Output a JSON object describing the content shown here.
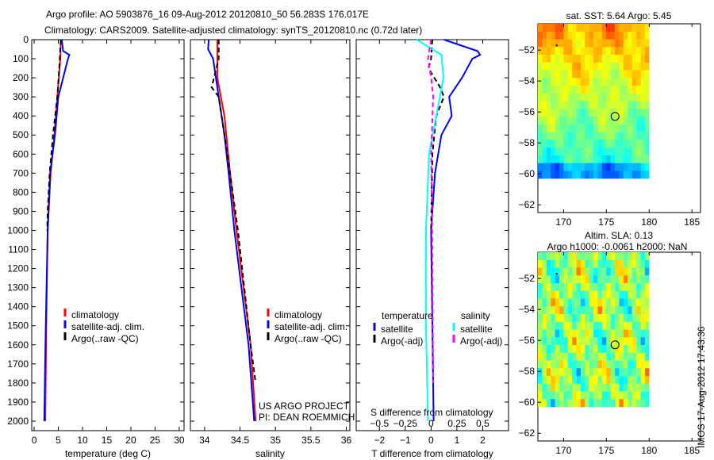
{
  "title_line1": "Argo profile: AO 5903876_16 09-Aug-2012 20120810_50 56.283S 176.017E",
  "title_line2": "Climatology: CARS2009. Satellite-adjusted climatology: synTS_20120810.nc (0.72d later)",
  "side_stamp": "IMOS 17-Aug-2012 17:43:36",
  "colors": {
    "climatology": "#ff0000",
    "satellite": "#0000ff",
    "argo": "#000000",
    "s_satellite": "#00ffff",
    "s_argo": "#ff00ff"
  },
  "chart_data": [
    {
      "type": "line",
      "xlabel": "temperature (deg C)",
      "ylabel": "",
      "xlim": [
        -0.5,
        31
      ],
      "ylim": [
        2050,
        0
      ],
      "xticks": [
        0,
        5,
        10,
        15,
        20,
        25,
        30
      ],
      "yticks": [
        0,
        100,
        200,
        300,
        400,
        500,
        600,
        700,
        800,
        900,
        1000,
        1100,
        1200,
        1300,
        1400,
        1500,
        1600,
        1700,
        1800,
        1900,
        2000
      ],
      "legend": [
        "climatology",
        "satellite-adj. clim.",
        "Argo(..raw -QC)"
      ],
      "legend_position": "lower-center",
      "series": [
        {
          "name": "climatology",
          "depth": [
            0,
            100,
            300,
            500,
            700,
            1000,
            1500,
            2000
          ],
          "values": [
            5.5,
            5.4,
            4.8,
            4.2,
            3.4,
            2.8,
            2.5,
            2.3
          ]
        },
        {
          "name": "satellite-adj. clim.",
          "depth": [
            0,
            60,
            80,
            100,
            200,
            300,
            500,
            700,
            1000,
            1500,
            1800,
            2000
          ],
          "values": [
            5.7,
            6.0,
            7.3,
            7.0,
            6.0,
            5.0,
            4.3,
            3.3,
            2.8,
            2.4,
            2.2,
            2.1
          ]
        },
        {
          "name": "Argo(..raw -QC)",
          "depth": [
            0,
            100,
            300,
            500,
            700,
            900,
            1000
          ],
          "values": [
            5.5,
            5.3,
            4.8,
            3.9,
            3.2,
            2.8,
            2.7
          ]
        }
      ]
    },
    {
      "type": "line",
      "xlabel": "salinity",
      "xlim": [
        33.8,
        36.05
      ],
      "ylim": [
        2050,
        0
      ],
      "xticks": [
        34,
        34.5,
        35,
        35.5,
        36
      ],
      "legend": [
        "climatology",
        "satellite-adj. clim.",
        "Argo(..raw -QC)"
      ],
      "legend_position": "center-right",
      "annotation": [
        "US ARGO PROJECT",
        "PI: DEAN ROEMMICH"
      ],
      "series": [
        {
          "name": "climatology",
          "depth": [
            0,
            200,
            400,
            700,
            1000,
            1300,
            1600,
            2000
          ],
          "values": [
            34.18,
            34.18,
            34.28,
            34.36,
            34.45,
            34.55,
            34.65,
            34.72
          ]
        },
        {
          "name": "satellite-adj. clim.",
          "depth": [
            0,
            50,
            100,
            300,
            500,
            700,
            1000,
            1300,
            1600,
            2000
          ],
          "values": [
            34.06,
            34.05,
            34.12,
            34.2,
            34.28,
            34.34,
            34.42,
            34.52,
            34.62,
            34.7
          ]
        },
        {
          "name": "Argo(..raw -QC)",
          "depth": [
            0,
            100,
            250,
            300,
            500,
            700,
            1000,
            1300,
            1600,
            1800
          ],
          "values": [
            34.2,
            34.2,
            34.1,
            34.2,
            34.28,
            34.36,
            34.47,
            34.56,
            34.65,
            34.72
          ]
        }
      ]
    },
    {
      "type": "line",
      "xlabel": "T difference from climatology",
      "xlabel2": "S difference from climatology",
      "xlim": [
        -2.9,
        3.0
      ],
      "ylim": [
        2050,
        0
      ],
      "xticks": [
        -2,
        -1,
        0,
        1,
        2
      ],
      "xticks2": [
        "-0.5",
        "-0.25",
        "0",
        "0.25",
        "0.5"
      ],
      "legend_headers": [
        "temperature",
        "salinity"
      ],
      "legend": [
        "satellite",
        "Argo(-adj)",
        "satellite",
        "Argo(-adj)"
      ],
      "legend_position": "lower-center",
      "series": [
        {
          "name": "T satellite",
          "depth": [
            0,
            60,
            80,
            100,
            200,
            300,
            400,
            500,
            700,
            1000,
            1500,
            2000
          ],
          "values": [
            0.5,
            1.8,
            1.9,
            1.6,
            1.2,
            0.7,
            0.8,
            0.4,
            0.15,
            0.0,
            0.05,
            0.1
          ]
        },
        {
          "name": "T Argo(-adj)",
          "depth": [
            0,
            100,
            150,
            250,
            300,
            400,
            600,
            1000
          ],
          "values": [
            0.05,
            0.0,
            -0.1,
            0.35,
            0.5,
            0.2,
            0.05,
            0.0
          ]
        },
        {
          "name": "S satellite",
          "depth": [
            0,
            80,
            200,
            400,
            600,
            1000,
            1500,
            2000
          ],
          "values": [
            -0.14,
            0.1,
            0.12,
            0.05,
            -0.02,
            -0.05,
            -0.05,
            -0.03
          ]
        },
        {
          "name": "S Argo(-adj)",
          "depth": [
            0,
            100,
            200,
            300,
            600,
            1000,
            1800
          ],
          "values": [
            0.0,
            -0.03,
            0.0,
            0.02,
            0.0,
            0.01,
            0.02
          ]
        }
      ]
    },
    {
      "type": "heatmap",
      "title": "sat. SST: 5.64  Argo: 5.45",
      "xlim": [
        167,
        186
      ],
      "ylim": [
        -62.5,
        -50.3
      ],
      "xticks": [
        170,
        175,
        180,
        185
      ],
      "yticks": [
        -52,
        -54,
        -56,
        -58,
        -60,
        -62
      ],
      "marker": {
        "lon": 176.017,
        "lat": -56.283
      }
    },
    {
      "type": "heatmap",
      "title": "Altim. SLA: 0.13",
      "subtitle": "Argo h1000: -0.0061 h2000: NaN",
      "xlim": [
        167,
        186
      ],
      "ylim": [
        -62.5,
        -50.3
      ],
      "xticks": [
        170,
        175,
        180,
        185
      ],
      "yticks": [
        -52,
        -54,
        -56,
        -58,
        -60,
        -62
      ],
      "marker": {
        "lon": 176.017,
        "lat": -56.283
      }
    }
  ]
}
